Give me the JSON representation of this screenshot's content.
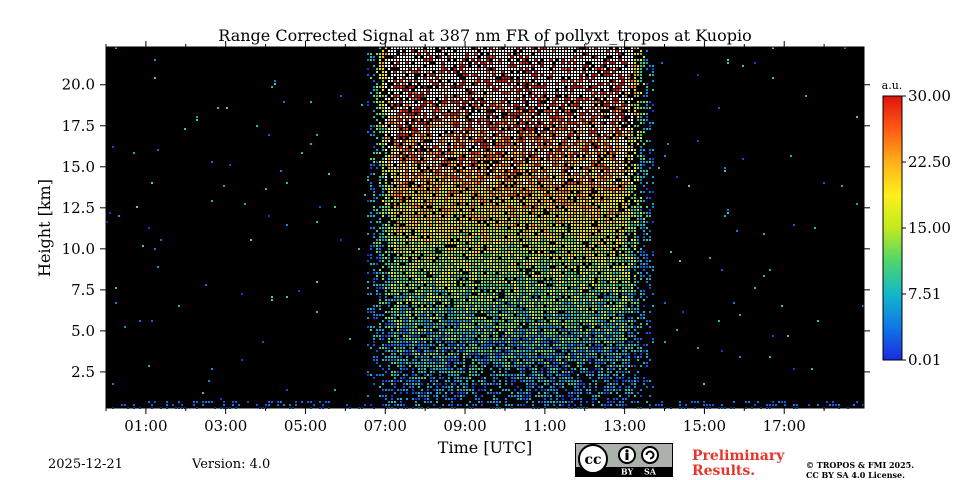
{
  "chart_data": {
    "type": "heatmap",
    "title": "Range Corrected Signal at 387 nm FR of pollyxt_tropos at Kuopio",
    "xlabel": "Time [UTC]",
    "ylabel": "Height [km]",
    "x_range_hours": [
      0,
      19
    ],
    "ylim": [
      0.3,
      22.3
    ],
    "x_tick_hours": [
      1,
      3,
      5,
      7,
      9,
      11,
      13,
      15,
      17
    ],
    "x_tick_labels": [
      "01:00",
      "03:00",
      "05:00",
      "07:00",
      "09:00",
      "11:00",
      "13:00",
      "15:00",
      "17:00"
    ],
    "y_ticks": [
      2.5,
      5.0,
      7.5,
      10.0,
      12.5,
      15.0,
      17.5,
      20.0
    ],
    "y_tick_labels": [
      "2.5",
      "5.0",
      "7.5",
      "10.0",
      "12.5",
      "15.0",
      "17.5",
      "20.0"
    ],
    "signal_period_hours": [
      6.5,
      13.7
    ],
    "colorbar": {
      "unit": "a.u.",
      "range": [
        0.01,
        30.0
      ],
      "ticks": [
        0.01,
        7.51,
        15.0,
        22.5,
        30.0
      ],
      "tick_labels": [
        "0.01",
        "7.51",
        "15.00",
        "22.50",
        "30.00"
      ],
      "colormap": [
        "#1a2be0",
        "#1077e6",
        "#12b8c8",
        "#4fd66b",
        "#c2ea1e",
        "#fff01a",
        "#ffb01a",
        "#ff5a14",
        "#e0140c"
      ]
    }
  },
  "footer": {
    "date": "2025-12-21",
    "version": "Version: 4.0",
    "preliminary": "Preliminary",
    "results": "Results.",
    "copyright_line1": "© TROPOS & FMI 2025.",
    "copyright_line2": "CC BY SA 4.0 License.",
    "cc_label": "cc",
    "by_label": "BY",
    "sa_label": "SA"
  },
  "colors": {
    "background": "#000000",
    "preliminary": "#e8352b"
  }
}
